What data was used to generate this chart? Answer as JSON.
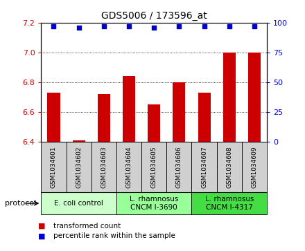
{
  "title": "GDS5006 / 173596_at",
  "samples": [
    "GSM1034601",
    "GSM1034602",
    "GSM1034603",
    "GSM1034604",
    "GSM1034605",
    "GSM1034606",
    "GSM1034607",
    "GSM1034608",
    "GSM1034609"
  ],
  "bar_values": [
    6.73,
    6.41,
    6.72,
    6.84,
    6.65,
    6.8,
    6.73,
    7.0,
    7.0
  ],
  "percentile_values": [
    97,
    96,
    97,
    97,
    96,
    97,
    97,
    97,
    97
  ],
  "ylim_left": [
    6.4,
    7.2
  ],
  "ylim_right": [
    0,
    100
  ],
  "yticks_left": [
    6.4,
    6.6,
    6.8,
    7.0,
    7.2
  ],
  "yticks_right": [
    0,
    25,
    50,
    75,
    100
  ],
  "bar_color": "#cc0000",
  "dot_color": "#0000cc",
  "grid_color": "#000000",
  "bg_color": "#ffffff",
  "group_colors": [
    "#ccffcc",
    "#99ff99",
    "#44dd44"
  ],
  "group_labels": [
    "E. coli control",
    "L. rhamnosus\nCNCM I-3690",
    "L. rhamnosus\nCNCM I-4317"
  ],
  "group_starts": [
    0,
    3,
    6
  ],
  "group_ends": [
    3,
    6,
    9
  ],
  "legend_bar_label": "transformed count",
  "legend_dot_label": "percentile rank within the sample",
  "protocol_label": "protocol",
  "xlabel_color": "#cc0000",
  "ylabel_right_color": "#0000cc",
  "sample_box_color": "#d0d0d0",
  "title_fontsize": 10,
  "tick_fontsize": 8,
  "sample_fontsize": 6.5,
  "group_fontsize": 7.5,
  "legend_fontsize": 7.5
}
